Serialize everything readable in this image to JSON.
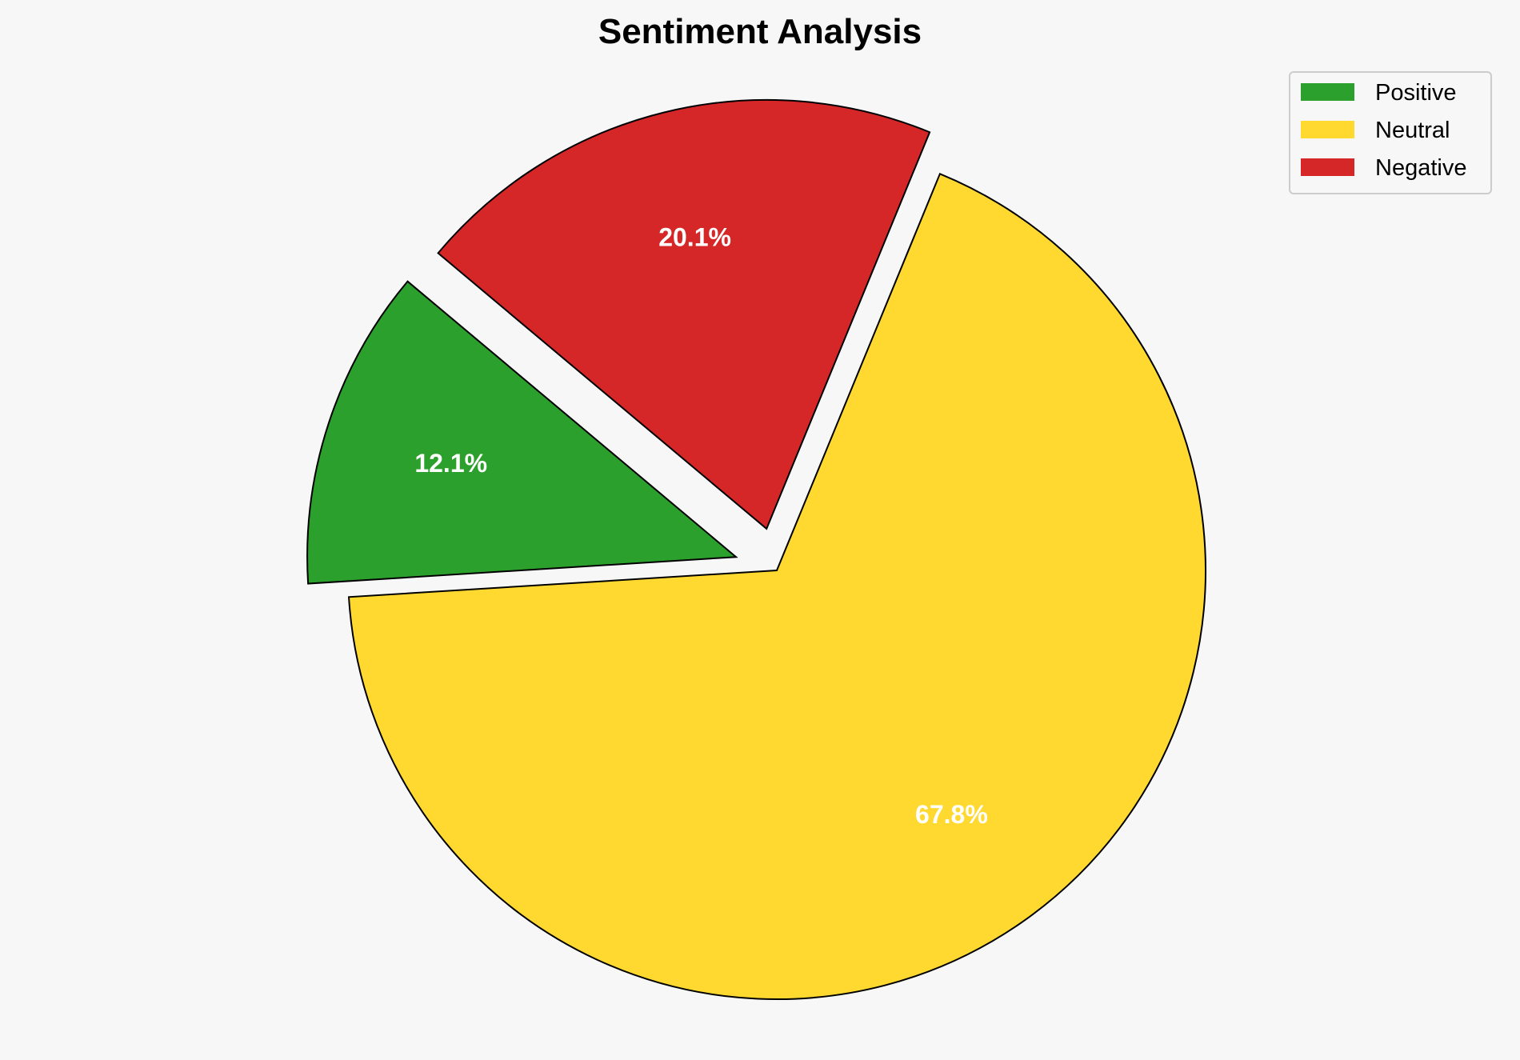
{
  "chart_data": {
    "type": "pie",
    "title": "Sentiment Analysis",
    "categories": [
      "Positive",
      "Neutral",
      "Negative"
    ],
    "values": [
      12.1,
      67.8,
      20.1
    ],
    "labels": [
      "12.1%",
      "67.8%",
      "20.1%"
    ],
    "colors": [
      "#2ca02c",
      "#ffd92f",
      "#d62728"
    ],
    "exploded": [
      true,
      false,
      true
    ],
    "start_angle_deg": 140,
    "legend": {
      "placement": "top-right",
      "entries": [
        "Positive",
        "Neutral",
        "Negative"
      ]
    }
  }
}
